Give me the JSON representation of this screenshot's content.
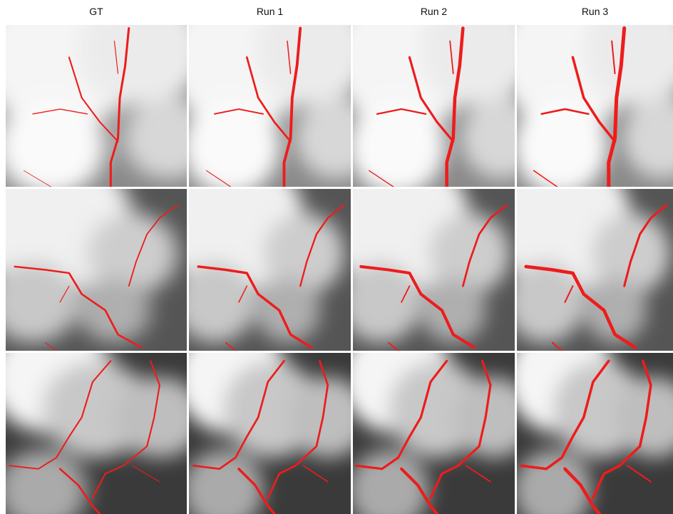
{
  "figure": {
    "columns": [
      "GT",
      "Run 1",
      "Run 2",
      "Run 3"
    ]
  }
}
